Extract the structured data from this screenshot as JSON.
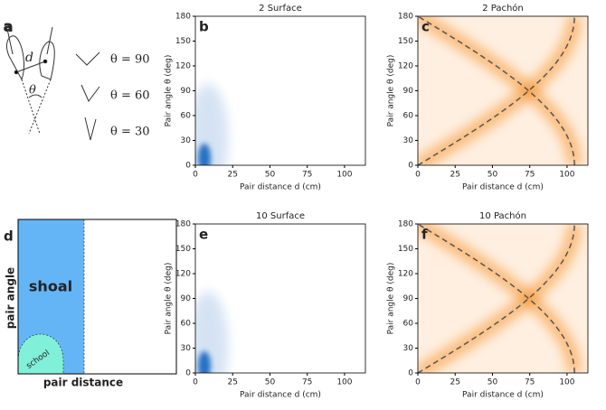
{
  "chart_data": [
    {
      "type": "heatmap",
      "panel": "b",
      "title": "2 Surface",
      "xlabel": "Pair distance d (cm)",
      "ylabel": "Pair angle θ (deg)",
      "color": "#1565c0",
      "xlim": [
        0,
        114
      ],
      "ylim": [
        0,
        180
      ],
      "xticks": [
        0,
        25,
        50,
        75,
        100
      ],
      "yticks": [
        0,
        30,
        60,
        90,
        120,
        150,
        180
      ]
    },
    {
      "type": "heatmap",
      "panel": "c",
      "title": "2 Pachón",
      "xlabel": "Pair distance d (cm)",
      "ylabel": "Pair angle θ (deg)",
      "color": "#f57c00",
      "xlim": [
        0,
        114
      ],
      "ylim": [
        0,
        180
      ],
      "xticks": [
        0,
        25,
        50,
        75,
        100
      ],
      "yticks": [
        0,
        30,
        60,
        90,
        120,
        150,
        180
      ],
      "curve_diameter": 105
    },
    {
      "type": "heatmap",
      "panel": "e",
      "title": "10 Surface",
      "xlabel": "Pair distance d (cm)",
      "ylabel": "Pair angle θ (deg)",
      "color": "#1565c0",
      "xlim": [
        0,
        114
      ],
      "ylim": [
        0,
        180
      ],
      "xticks": [
        0,
        25,
        50,
        75,
        100
      ],
      "yticks": [
        0,
        30,
        60,
        90,
        120,
        150,
        180
      ]
    },
    {
      "type": "heatmap",
      "panel": "f",
      "title": "10 Pachón",
      "xlabel": "Pair distance d (cm)",
      "ylabel": "Pair angle θ (deg)",
      "color": "#f57c00",
      "xlim": [
        0,
        114
      ],
      "ylim": [
        0,
        180
      ],
      "xticks": [
        0,
        25,
        50,
        75,
        100
      ],
      "yticks": [
        0,
        30,
        60,
        90,
        120,
        150,
        180
      ],
      "curve_diameter": 105
    }
  ],
  "diagram_a": {
    "label": "a",
    "d_label": "d",
    "theta_label": "θ",
    "examples": [
      "θ = 90",
      "θ = 60",
      "θ = 30"
    ]
  },
  "diagram_d": {
    "label": "d",
    "region_large": "shoal",
    "region_small": "school",
    "ylabel": "pair angle",
    "xlabel": "pair distance"
  }
}
